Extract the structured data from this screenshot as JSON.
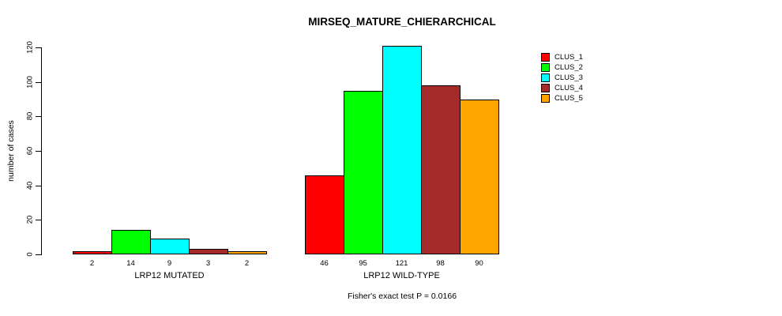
{
  "figure": {
    "title": "MIRSEQ_MATURE_CHIERARCHICAL",
    "caption": "Fisher's exact test P = 0.0166"
  },
  "chart_data": {
    "type": "bar",
    "title": "MIRSEQ_MATURE_CHIERARCHICAL",
    "xlabel": "",
    "ylabel": "number of cases",
    "categories": [
      "LRP12 MUTATED",
      "LRP12 WILD-TYPE"
    ],
    "series": [
      {
        "name": "CLUS_1",
        "color": "#ff0000",
        "values": [
          2,
          46
        ]
      },
      {
        "name": "CLUS_2",
        "color": "#00ff00",
        "values": [
          14,
          95
        ]
      },
      {
        "name": "CLUS_3",
        "color": "#00ffff",
        "values": [
          9,
          121
        ]
      },
      {
        "name": "CLUS_4",
        "color": "#a52a2a",
        "values": [
          3,
          98
        ]
      },
      {
        "name": "CLUS_5",
        "color": "#ffa500",
        "values": [
          2,
          90
        ]
      }
    ],
    "bar_value_labels": [
      [
        "2",
        "14",
        "9",
        "3",
        "2"
      ],
      [
        "46",
        "95",
        "121",
        "98",
        "90"
      ]
    ],
    "yticks": [
      0,
      20,
      40,
      60,
      80,
      100,
      120
    ],
    "ylim": [
      0,
      121
    ],
    "grid": false,
    "legend_position": "top-right",
    "legend_entries": [
      "CLUS_1",
      "CLUS_2",
      "CLUS_3",
      "CLUS_4",
      "CLUS_5"
    ],
    "annotation": "Fisher's exact test P = 0.0166",
    "bar_border_color": "#000000",
    "background_color": "#ffffff"
  }
}
